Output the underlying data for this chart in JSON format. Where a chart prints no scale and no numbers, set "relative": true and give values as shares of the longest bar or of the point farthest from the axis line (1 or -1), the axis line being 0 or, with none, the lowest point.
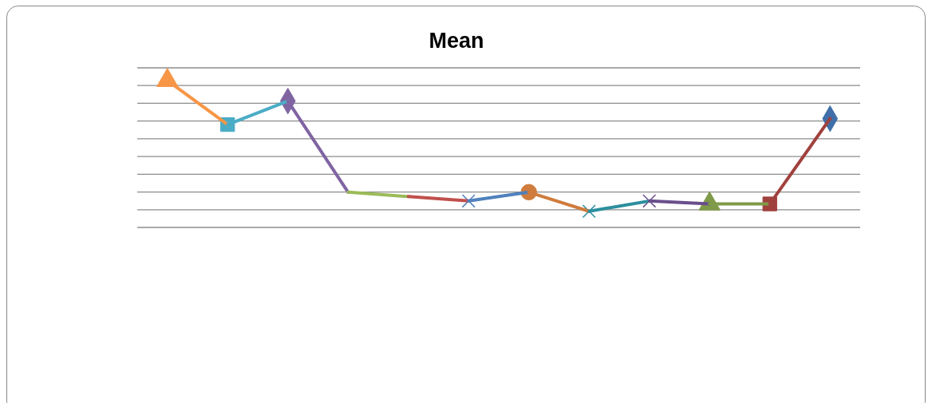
{
  "chart_data": {
    "type": "line",
    "title": "Mean",
    "relative": true,
    "grid": true,
    "line_style": "solid",
    "categories": [
      null,
      null,
      null,
      null,
      null,
      null,
      null,
      null,
      null,
      null,
      null,
      null
    ],
    "series": [
      {
        "color": "#f79646",
        "marker": "triangle",
        "values": [
          1,
          0.7,
          null,
          null,
          null,
          null,
          null,
          null,
          null,
          null,
          null,
          null
        ]
      },
      {
        "color": "#4bacc6",
        "marker": "square",
        "values": [
          null,
          0.7,
          0.86,
          null,
          null,
          null,
          null,
          null,
          null,
          null,
          null,
          null
        ]
      },
      {
        "color": "#8064a2",
        "marker": "diamond",
        "values": [
          null,
          null,
          0.86,
          0.24,
          null,
          null,
          null,
          null,
          null,
          null,
          null,
          null
        ]
      },
      {
        "color": "#9bbb59",
        "marker": "none",
        "values": [
          null,
          null,
          null,
          0.24,
          0.21,
          null,
          null,
          null,
          null,
          null,
          null,
          null
        ]
      },
      {
        "color": "#c0504d",
        "marker": "none",
        "values": [
          null,
          null,
          null,
          null,
          0.21,
          0.18,
          null,
          null,
          null,
          null,
          null,
          null
        ]
      },
      {
        "color": "#4f81bd",
        "marker": "cross",
        "values": [
          null,
          null,
          null,
          null,
          null,
          0.18,
          0.24,
          null,
          null,
          null,
          null,
          null
        ]
      },
      {
        "color": "#d07c3c",
        "marker": "circle",
        "values": [
          null,
          null,
          null,
          null,
          null,
          null,
          0.24,
          0.11,
          null,
          null,
          null,
          null
        ]
      },
      {
        "color": "#2c8f9e",
        "marker": "cross",
        "values": [
          null,
          null,
          null,
          null,
          null,
          null,
          null,
          0.11,
          0.18,
          null,
          null,
          null
        ]
      },
      {
        "color": "#6a4f8c",
        "marker": "cross",
        "values": [
          null,
          null,
          null,
          null,
          null,
          null,
          null,
          null,
          0.18,
          0.16,
          null,
          null
        ]
      },
      {
        "color": "#7f9a48",
        "marker": "triangle",
        "values": [
          null,
          null,
          null,
          null,
          null,
          null,
          null,
          null,
          null,
          0.16,
          0.16,
          null
        ]
      },
      {
        "color": "#a0413e",
        "marker": "square",
        "values": [
          null,
          null,
          null,
          null,
          null,
          null,
          null,
          null,
          null,
          null,
          0.16,
          0.74
        ]
      },
      {
        "color": "#3f6ea8",
        "marker": "diamond",
        "values": [
          null,
          null,
          null,
          null,
          null,
          null,
          null,
          null,
          null,
          null,
          null,
          0.74
        ]
      }
    ]
  }
}
